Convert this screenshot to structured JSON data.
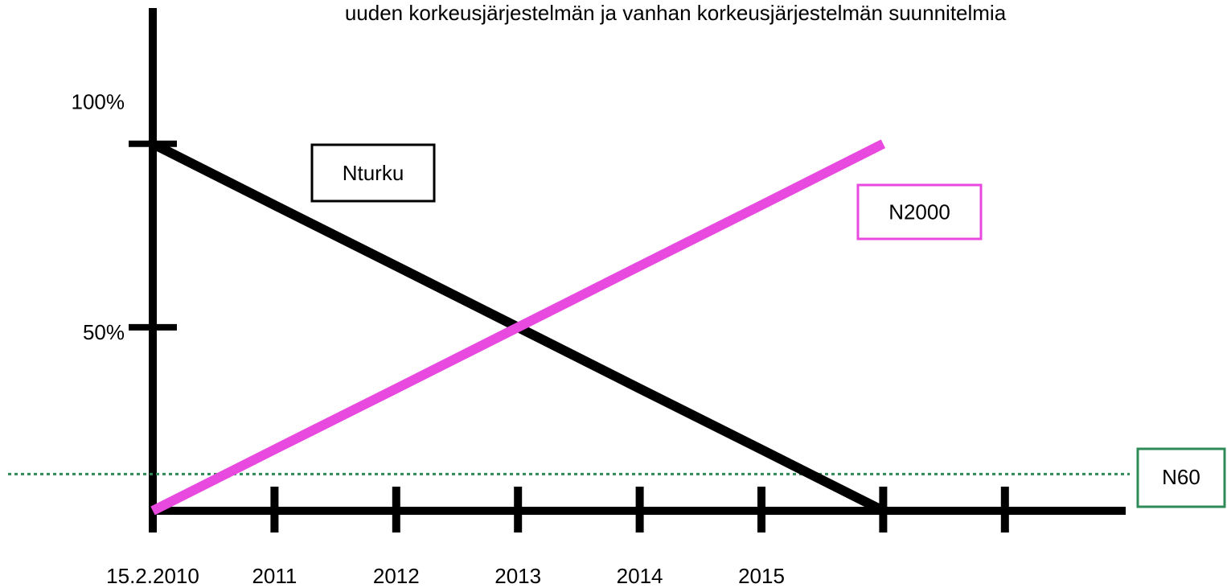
{
  "chart_data": {
    "type": "line",
    "title": "uuden korkeusjärjestelmän ja vanhan korkeusjärjestelmän suunnitelmia",
    "categories": [
      "15.2.2010",
      "2011",
      "2012",
      "2013",
      "2014",
      "2015",
      null,
      null
    ],
    "series": [
      {
        "name": "Nturku",
        "color": "#000000",
        "values": [
          100,
          83.3,
          66.7,
          50,
          33.3,
          16.7,
          0,
          null
        ]
      },
      {
        "name": "N2000",
        "color": "#e84adf",
        "values": [
          0,
          16.7,
          33.3,
          50,
          66.7,
          83.3,
          100,
          null
        ]
      }
    ],
    "reference_line": {
      "name": "N60",
      "value": 10,
      "color": "#2e8b57"
    },
    "ylim": [
      0,
      137
    ],
    "yticks": [
      {
        "value": 50,
        "label": "50%"
      },
      {
        "value": 100,
        "label": "100%"
      }
    ]
  }
}
